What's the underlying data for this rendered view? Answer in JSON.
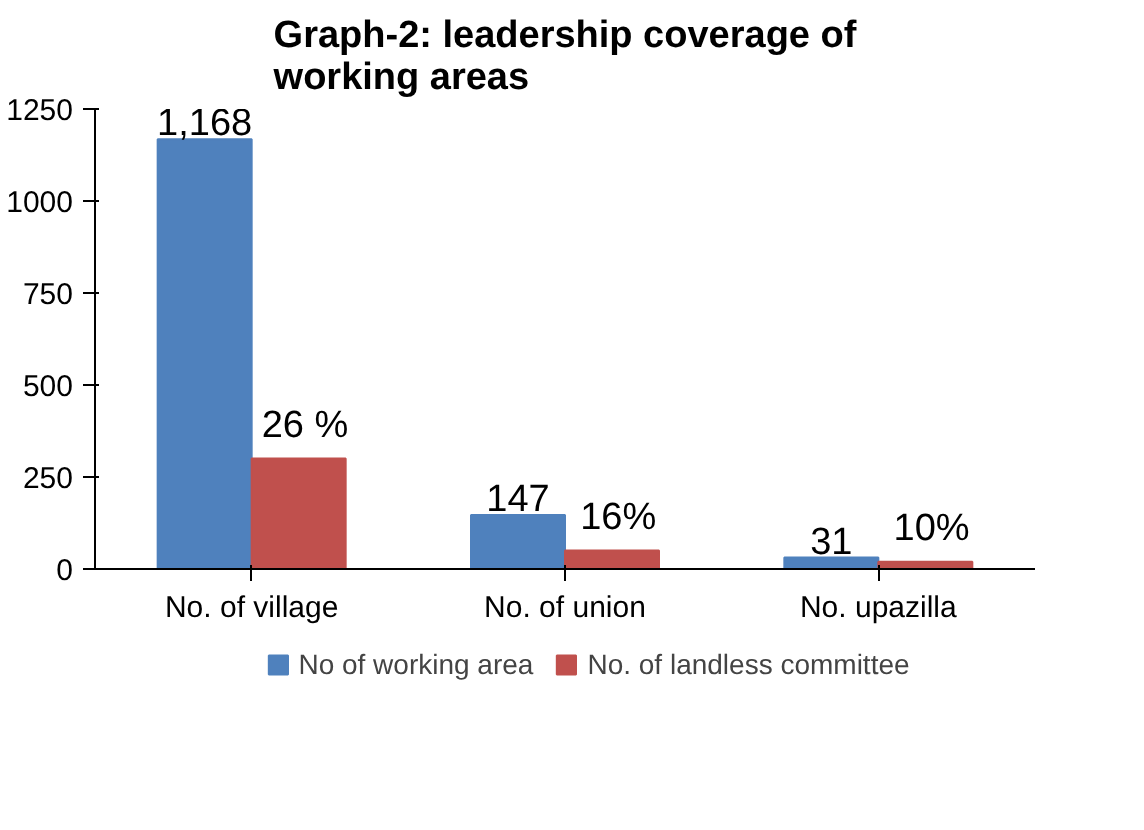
{
  "chart_data": {
    "type": "bar",
    "title": "Graph-2: leadership coverage of working areas",
    "categories": [
      "No. of village",
      "No. of union",
      "No. upazilla"
    ],
    "series": [
      {
        "name": "No of working area",
        "color": "#4f81bd",
        "values": [
          1168,
          147,
          31
        ],
        "value_labels": [
          "1,168",
          "147",
          "31"
        ]
      },
      {
        "name": "No. of landless committee",
        "color": "#c0504d",
        "values": [
          300,
          50,
          20
        ]
      }
    ],
    "annotations": [
      {
        "text": "26 %",
        "x": "No. of village",
        "y": 300
      },
      {
        "text": "16%",
        "x": "No. of union",
        "y": 50
      },
      {
        "text": "10%",
        "x": "No. upazilla",
        "y": 20
      }
    ],
    "ylim": [
      0,
      1250
    ],
    "yticks": [
      0,
      250,
      500,
      750,
      1000,
      1250
    ],
    "legend": "bottom"
  }
}
